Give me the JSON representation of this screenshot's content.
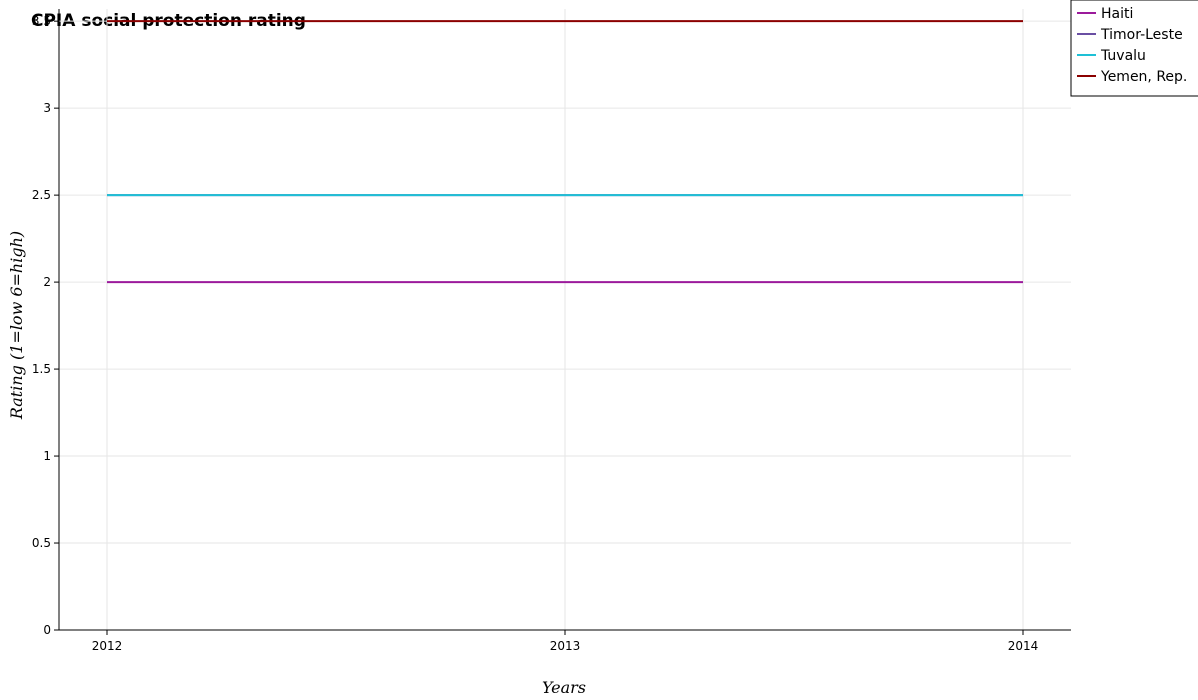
{
  "chart_data": {
    "type": "line",
    "title": "CPIA social protection rating",
    "xlabel": "Years",
    "ylabel": "Rating (1=low 6=high)",
    "x": [
      "2012",
      "2013",
      "2014"
    ],
    "ylim": [
      0,
      3.57
    ],
    "yticks": [
      "0",
      "0.5",
      "1",
      "1.5",
      "2",
      "2.5",
      "3",
      "3.5"
    ],
    "grid": true,
    "legend_position": "top-right",
    "series": [
      {
        "name": "Haiti",
        "values": [
          2.0,
          2.0,
          2.0
        ],
        "color": "#9b1a9b"
      },
      {
        "name": "Timor-Leste",
        "values": [
          2.5,
          2.5,
          2.5
        ],
        "color": "#6a4fa3"
      },
      {
        "name": "Tuvalu",
        "values": [
          2.5,
          2.5,
          2.5
        ],
        "color": "#1ec0d6"
      },
      {
        "name": "Yemen, Rep.",
        "values": [
          3.5,
          3.5,
          3.5
        ],
        "color": "#8b0000"
      }
    ]
  }
}
